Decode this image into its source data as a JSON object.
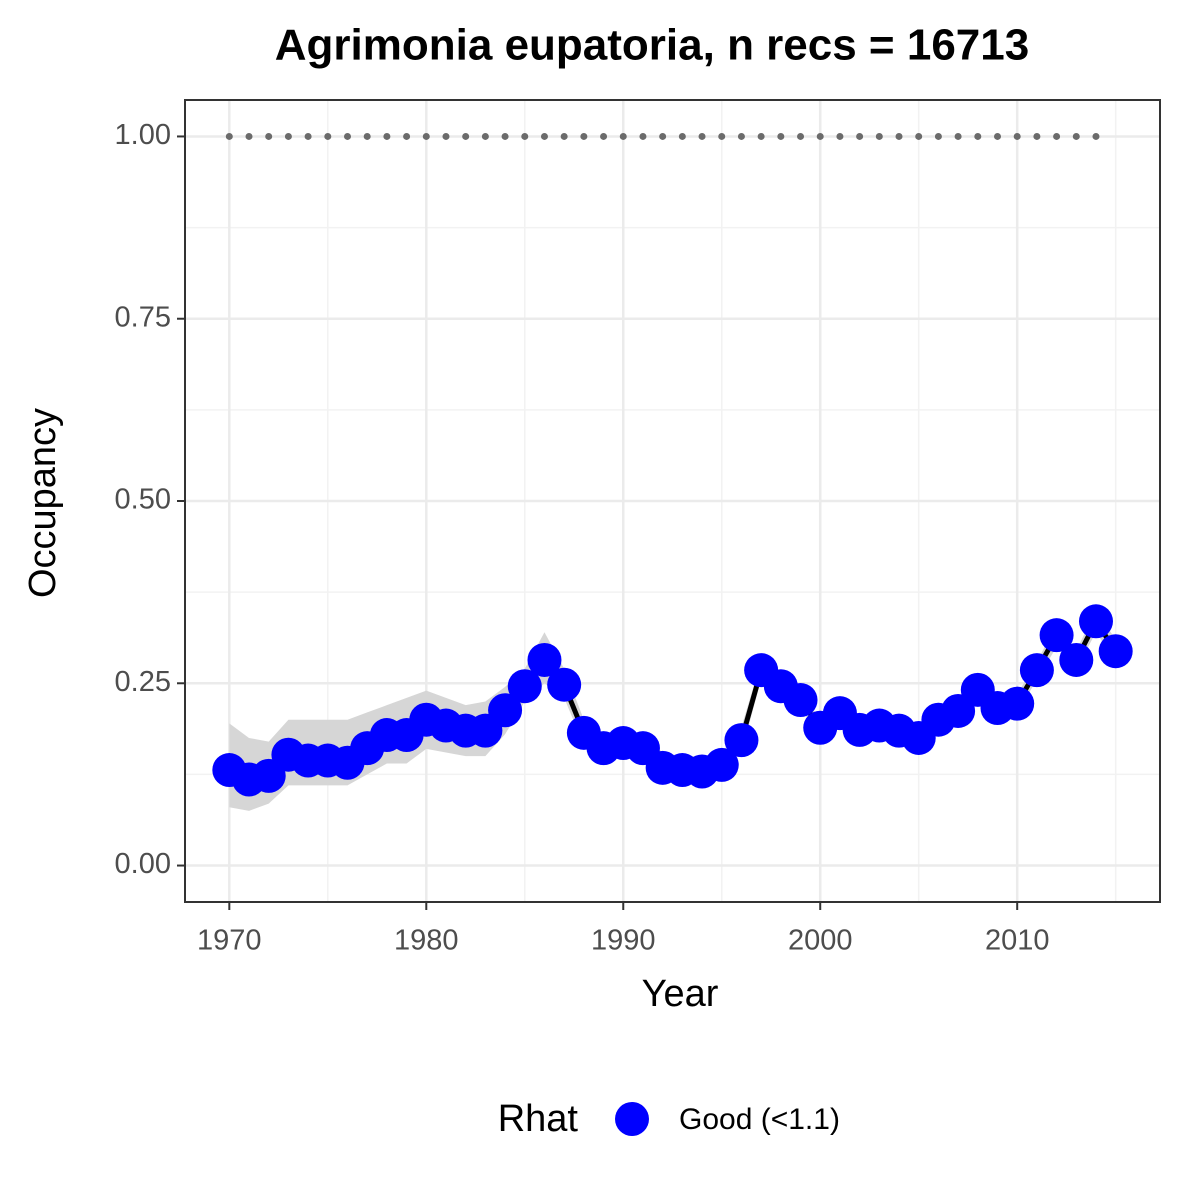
{
  "chart_data": {
    "type": "line",
    "title": "Agrimonia eupatoria, n recs = 16713",
    "x_label": "Year",
    "y_label": "Occupancy",
    "x": [
      1970,
      1971,
      1972,
      1973,
      1974,
      1975,
      1976,
      1977,
      1978,
      1979,
      1980,
      1981,
      1982,
      1983,
      1984,
      1985,
      1986,
      1987,
      1988,
      1989,
      1990,
      1991,
      1992,
      1993,
      1994,
      1995,
      1996,
      1997,
      1998,
      1999,
      2000,
      2001,
      2002,
      2003,
      2004,
      2005,
      2006,
      2007,
      2008,
      2009,
      2010,
      2011,
      2012,
      2013,
      2014,
      2015
    ],
    "series": [
      {
        "name": "Good (<1.1)",
        "color": "#0000ff",
        "line_color": "#000000",
        "values": [
          0.131,
          0.118,
          0.123,
          0.152,
          0.144,
          0.144,
          0.141,
          0.161,
          0.179,
          0.179,
          0.2,
          0.192,
          0.185,
          0.185,
          0.213,
          0.246,
          0.282,
          0.248,
          0.182,
          0.161,
          0.168,
          0.161,
          0.134,
          0.131,
          0.129,
          0.138,
          0.172,
          0.268,
          0.246,
          0.227,
          0.189,
          0.209,
          0.186,
          0.192,
          0.185,
          0.175,
          0.2,
          0.212,
          0.241,
          0.216,
          0.222,
          0.268,
          0.316,
          0.282,
          0.335,
          0.294
        ]
      }
    ],
    "ribbon": {
      "color": "#d6d6d6",
      "upper": [
        0.195,
        0.175,
        0.17,
        0.2,
        0.2,
        0.2,
        0.2,
        0.21,
        0.22,
        0.23,
        0.24,
        0.23,
        0.22,
        0.225,
        0.245,
        0.27,
        0.32,
        0.27,
        0.2,
        0.18,
        0.18,
        0.18,
        0.155,
        0.15,
        0.15,
        0.155,
        0.19,
        0.28,
        0.26,
        0.24,
        0.2,
        0.22,
        0.2,
        0.2,
        0.2,
        0.19,
        0.21,
        0.225,
        0.255,
        0.23,
        0.235,
        0.28,
        0.33,
        0.295,
        0.35,
        0.31
      ],
      "lower": [
        0.08,
        0.075,
        0.085,
        0.11,
        0.11,
        0.11,
        0.11,
        0.125,
        0.14,
        0.14,
        0.16,
        0.155,
        0.15,
        0.15,
        0.18,
        0.225,
        0.25,
        0.23,
        0.165,
        0.145,
        0.155,
        0.145,
        0.12,
        0.115,
        0.115,
        0.125,
        0.155,
        0.255,
        0.235,
        0.215,
        0.178,
        0.198,
        0.175,
        0.18,
        0.172,
        0.163,
        0.19,
        0.2,
        0.228,
        0.204,
        0.21,
        0.255,
        0.3,
        0.27,
        0.32,
        0.28
      ]
    },
    "hline": 1,
    "hline_color": "#6b6b6b",
    "xlim": [
      1967.75,
      2017.25
    ],
    "ylim": [
      -0.05,
      1.05
    ],
    "xticks": [
      1970,
      1980,
      1990,
      2000,
      2010
    ],
    "yticks": [
      {
        "value": 0,
        "label": "0.00"
      },
      {
        "value": 0.25,
        "label": "0.25"
      },
      {
        "value": 0.5,
        "label": "0.50"
      },
      {
        "value": 0.75,
        "label": "0.75"
      },
      {
        "value": 1,
        "label": "1.00"
      }
    ],
    "grid": true,
    "legend_title": "Rhat",
    "legend_position": "bottom"
  }
}
